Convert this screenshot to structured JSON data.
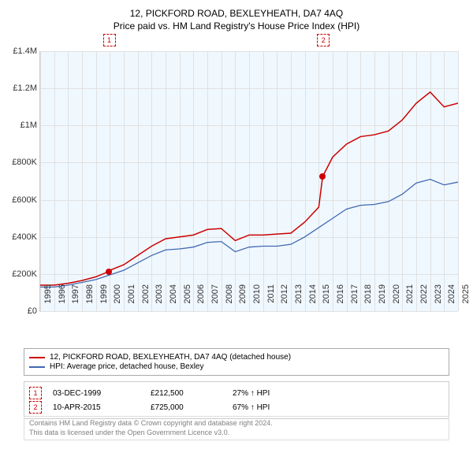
{
  "title": "12, PICKFORD ROAD, BEXLEYHEATH, DA7 4AQ",
  "subtitle": "Price paid vs. HM Land Registry's House Price Index (HPI)",
  "chart": {
    "type": "line",
    "background_color": "#f0f8ff",
    "grid_color": "#e0e0e0",
    "xlim": [
      1995,
      2025
    ],
    "ylim": [
      0,
      1400000
    ],
    "yticks": [
      0,
      200000,
      400000,
      600000,
      800000,
      1000000,
      1200000,
      1400000
    ],
    "ytick_labels": [
      "£0",
      "£200K",
      "£400K",
      "£600K",
      "£800K",
      "£1M",
      "£1.2M",
      "£1.4M"
    ],
    "xticks": [
      1995,
      1996,
      1997,
      1998,
      1999,
      2000,
      2001,
      2002,
      2003,
      2004,
      2005,
      2006,
      2007,
      2008,
      2009,
      2010,
      2011,
      2012,
      2013,
      2014,
      2015,
      2016,
      2017,
      2018,
      2019,
      2020,
      2021,
      2022,
      2023,
      2024,
      2025
    ],
    "series": [
      {
        "name": "12, PICKFORD ROAD, BEXLEYHEATH, DA7 4AQ (detached house)",
        "color": "#cc0000",
        "line_width": 1.5,
        "data": [
          [
            1995,
            140000
          ],
          [
            1996,
            140000
          ],
          [
            1997,
            150000
          ],
          [
            1998,
            165000
          ],
          [
            1999,
            185000
          ],
          [
            1999.9,
            212500
          ],
          [
            2000,
            220000
          ],
          [
            2001,
            250000
          ],
          [
            2002,
            300000
          ],
          [
            2003,
            350000
          ],
          [
            2004,
            390000
          ],
          [
            2005,
            400000
          ],
          [
            2006,
            410000
          ],
          [
            2007,
            440000
          ],
          [
            2008,
            445000
          ],
          [
            2009,
            380000
          ],
          [
            2010,
            410000
          ],
          [
            2011,
            410000
          ],
          [
            2012,
            415000
          ],
          [
            2013,
            420000
          ],
          [
            2014,
            480000
          ],
          [
            2015,
            560000
          ],
          [
            2015.28,
            725000
          ],
          [
            2016,
            830000
          ],
          [
            2017,
            900000
          ],
          [
            2018,
            940000
          ],
          [
            2019,
            950000
          ],
          [
            2020,
            970000
          ],
          [
            2021,
            1030000
          ],
          [
            2022,
            1120000
          ],
          [
            2023,
            1180000
          ],
          [
            2024,
            1100000
          ],
          [
            2025,
            1120000
          ]
        ]
      },
      {
        "name": "HPI: Average price, detached house, Bexley",
        "color": "#4169b0",
        "line_width": 1.3,
        "data": [
          [
            1995,
            130000
          ],
          [
            1996,
            130000
          ],
          [
            1997,
            140000
          ],
          [
            1998,
            155000
          ],
          [
            1999,
            170000
          ],
          [
            2000,
            195000
          ],
          [
            2001,
            220000
          ],
          [
            2002,
            260000
          ],
          [
            2003,
            300000
          ],
          [
            2004,
            330000
          ],
          [
            2005,
            335000
          ],
          [
            2006,
            345000
          ],
          [
            2007,
            370000
          ],
          [
            2008,
            375000
          ],
          [
            2009,
            320000
          ],
          [
            2010,
            345000
          ],
          [
            2011,
            350000
          ],
          [
            2012,
            350000
          ],
          [
            2013,
            360000
          ],
          [
            2014,
            400000
          ],
          [
            2015,
            450000
          ],
          [
            2016,
            500000
          ],
          [
            2017,
            550000
          ],
          [
            2018,
            570000
          ],
          [
            2019,
            575000
          ],
          [
            2020,
            590000
          ],
          [
            2021,
            630000
          ],
          [
            2022,
            690000
          ],
          [
            2023,
            710000
          ],
          [
            2024,
            680000
          ],
          [
            2025,
            695000
          ]
        ]
      }
    ],
    "markers": [
      {
        "label": "1",
        "x": 1999.9,
        "y": 212500
      },
      {
        "label": "2",
        "x": 2015.28,
        "y": 725000
      }
    ]
  },
  "legend": {
    "items": [
      {
        "color": "#cc0000",
        "label": "12, PICKFORD ROAD, BEXLEYHEATH, DA7 4AQ (detached house)"
      },
      {
        "color": "#4169b0",
        "label": "HPI: Average price, detached house, Bexley"
      }
    ]
  },
  "transactions": [
    {
      "num": "1",
      "date": "03-DEC-1999",
      "price": "£212,500",
      "hpi": "27% ↑ HPI"
    },
    {
      "num": "2",
      "date": "10-APR-2015",
      "price": "£725,000",
      "hpi": "67% ↑ HPI"
    }
  ],
  "footer": {
    "line1": "Contains HM Land Registry data © Crown copyright and database right 2024.",
    "line2": "This data is licensed under the Open Government Licence v3.0."
  }
}
